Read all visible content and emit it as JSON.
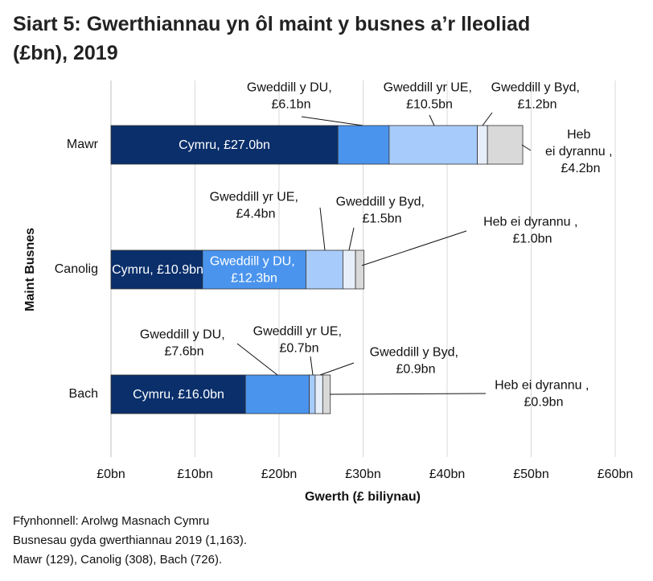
{
  "chart_data": {
    "type": "stacked_bar_horizontal",
    "title": "Siart 5: Gwerthiannau yn ôl maint y busnes a’r lleoliad (£bn), 2019",
    "xlabel": "Gwerth (£ biliynau)",
    "ylabel": "Maint Busnes",
    "categories": [
      "Mawr",
      "Canolig",
      "Bach"
    ],
    "series": [
      {
        "color": "#0a2f6b",
        "values": [
          27.0,
          10.9,
          16.0
        ],
        "value_labels": [
          "Cymru, £27.0bn",
          "Cymru, £10.9bn",
          "Cymru, £16.0bn"
        ]
      },
      {
        "color": "#4a94ee",
        "values": [
          6.1,
          12.3,
          7.6
        ],
        "value_labels": [
          "Gweddill y DU, £6.1bn",
          "Gweddill y DU, £12.3bn",
          "Gweddill y DU, £7.6bn"
        ]
      },
      {
        "color": "#a7cbfb",
        "values": [
          10.5,
          4.4,
          0.7
        ],
        "value_labels": [
          "Gweddill yr UE, £10.5bn",
          "Gweddill yr UE, £4.4bn",
          "Gweddill yr UE, £0.7bn"
        ]
      },
      {
        "color": "#e6eefa",
        "values": [
          1.2,
          1.5,
          0.9
        ],
        "value_labels": [
          "Gweddill y Byd, £1.2bn",
          "Gweddill y Byd, £1.5bn",
          "Gweddill y Byd, £0.9bn"
        ]
      },
      {
        "color": "#d9d9d9",
        "values": [
          4.2,
          1.0,
          0.9
        ],
        "value_labels": [
          "Heb ei dyrannu , £4.2bn",
          "Heb ei dyrannu , £1.0bn",
          "Heb ei dyrannu , £0.9bn"
        ]
      }
    ],
    "xlim": [
      0,
      60
    ],
    "xticks": [
      {
        "value": 0,
        "label": "£0bn"
      },
      {
        "value": 10,
        "label": "£10bn"
      },
      {
        "value": 20,
        "label": "£20bn"
      },
      {
        "value": 30,
        "label": "£30bn"
      },
      {
        "value": 40,
        "label": "£40bn"
      },
      {
        "value": 50,
        "label": "£50bn"
      },
      {
        "value": 60,
        "label": "£60bn"
      }
    ],
    "grid": true,
    "notes": [
      "Ffynhonnell: Arolwg Masnach Cymru",
      "Busnesau gyda gwerthiannau 2019 (1,163).",
      "Mawr (129), Canolig (308), Bach (726)."
    ]
  }
}
